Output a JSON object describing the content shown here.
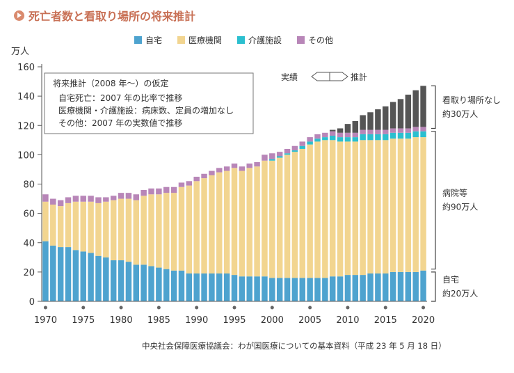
{
  "title": "死亡者数と看取り場所の将来推計",
  "chart_data": {
    "type": "bar",
    "stacked": true,
    "ylabel": "万人",
    "ylim": [
      0,
      160
    ],
    "yticks": [
      0,
      20,
      40,
      60,
      80,
      100,
      120,
      140,
      160
    ],
    "xticks": [
      1970,
      1975,
      1980,
      1985,
      1990,
      1995,
      2000,
      2005,
      2010,
      2015,
      2020
    ],
    "categories": [
      1970,
      1971,
      1972,
      1973,
      1974,
      1975,
      1976,
      1977,
      1978,
      1979,
      1980,
      1981,
      1982,
      1983,
      1984,
      1985,
      1986,
      1987,
      1988,
      1989,
      1990,
      1991,
      1992,
      1993,
      1994,
      1995,
      1996,
      1997,
      1998,
      1999,
      2000,
      2001,
      2002,
      2003,
      2004,
      2005,
      2006,
      2007,
      2008,
      2009,
      2010,
      2011,
      2012,
      2013,
      2014,
      2015,
      2016,
      2017,
      2018,
      2019,
      2020
    ],
    "series": [
      {
        "name": "自宅",
        "color": "#4ea3cf",
        "values": [
          41,
          38,
          37,
          37,
          35,
          34,
          33,
          31,
          30,
          28,
          28,
          27,
          25,
          25,
          24,
          23,
          22,
          21,
          21,
          19,
          19,
          19,
          19,
          19,
          19,
          18,
          17,
          17,
          17,
          17,
          16,
          16,
          16,
          16,
          16,
          16,
          16,
          16,
          17,
          17,
          18,
          18,
          18,
          19,
          19,
          19,
          20,
          20,
          20,
          20,
          21
        ]
      },
      {
        "name": "医療機関",
        "color": "#f2d590",
        "values": [
          27,
          28,
          28,
          30,
          33,
          34,
          35,
          36,
          38,
          41,
          42,
          43,
          44,
          47,
          49,
          50,
          52,
          53,
          57,
          60,
          63,
          65,
          67,
          69,
          70,
          73,
          72,
          74,
          75,
          79,
          80,
          82,
          84,
          86,
          88,
          91,
          93,
          94,
          93,
          92,
          91,
          91,
          92,
          91,
          91,
          91,
          91,
          91,
          91,
          92,
          91
        ]
      },
      {
        "name": "介護施設",
        "color": "#2bbfcf",
        "values": [
          0,
          0,
          0,
          0,
          0,
          0,
          0,
          0,
          0,
          0,
          0,
          0,
          0,
          0,
          0,
          0,
          0,
          0,
          0,
          0,
          0,
          0,
          0,
          0,
          0,
          0,
          0,
          0,
          0,
          0,
          1,
          1,
          1,
          1,
          2,
          2,
          2,
          2,
          3,
          3,
          3,
          3,
          4,
          4,
          4,
          4,
          4,
          4,
          4,
          4,
          4
        ]
      },
      {
        "name": "その他",
        "color": "#b886b8",
        "values": [
          5,
          4,
          4,
          4,
          4,
          4,
          4,
          4,
          3,
          3,
          4,
          4,
          4,
          4,
          4,
          4,
          4,
          4,
          3,
          3,
          3,
          3,
          3,
          3,
          3,
          3,
          3,
          3,
          3,
          4,
          4,
          3,
          3,
          3,
          3,
          3,
          3,
          3,
          3,
          3,
          3,
          3,
          3,
          3,
          3,
          3,
          3,
          3,
          3,
          3,
          3
        ]
      },
      {
        "name": "看取り場所なし",
        "color": "#555555",
        "values": [
          0,
          0,
          0,
          0,
          0,
          0,
          0,
          0,
          0,
          0,
          0,
          0,
          0,
          0,
          0,
          0,
          0,
          0,
          0,
          0,
          0,
          0,
          0,
          0,
          0,
          0,
          0,
          0,
          0,
          0,
          0,
          0,
          0,
          0,
          0,
          0,
          0,
          0,
          1,
          3,
          6,
          8,
          10,
          12,
          14,
          16,
          18,
          20,
          23,
          25,
          28
        ]
      }
    ],
    "legend": [
      "自宅",
      "医療機関",
      "介護施設",
      "その他"
    ],
    "annotations": {
      "box_title": "将来推計（2008 年〜）の仮定",
      "box_lines": [
        "自宅死亡：2007 年の比率で推移",
        "医療機関・介護施設：病床数、定員の増加なし",
        "その他：2007 年の実数値で推移"
      ],
      "actual_label": "実績",
      "estimate_label": "推計",
      "brackets": [
        {
          "lines": [
            "看取り場所なし",
            "約30万人"
          ],
          "from": 118,
          "to": 147
        },
        {
          "lines": [
            "病院等",
            "約90万人"
          ],
          "from": 22,
          "to": 116
        },
        {
          "lines": [
            "自宅",
            "約20万人"
          ],
          "from": 0,
          "to": 20
        }
      ]
    }
  },
  "source": "中央社会保障医療協議会：わが国医療についての基本資料（平成 23 年 5 月 18 日）"
}
